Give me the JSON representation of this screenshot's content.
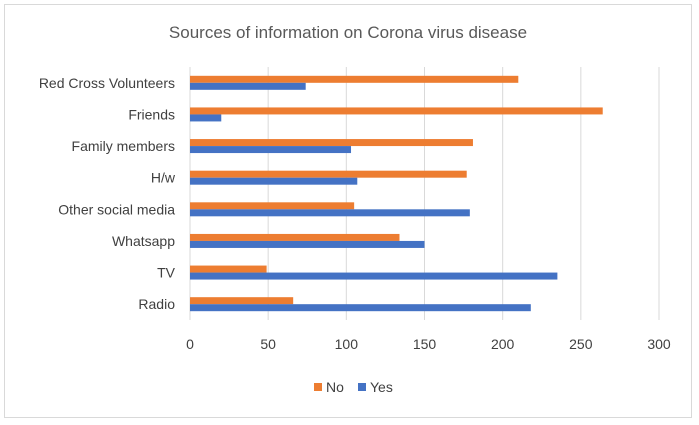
{
  "chart_data": {
    "type": "bar",
    "orientation": "horizontal",
    "title": "Sources of information on Corona virus disease",
    "categories": [
      "Red Cross Volunteers",
      "Friends",
      "Family members",
      "H/w",
      "Other social media",
      "Whatsapp",
      "TV",
      "Radio"
    ],
    "series": [
      {
        "name": "No",
        "color": "#ED7D31",
        "values": [
          210,
          264,
          181,
          177,
          105,
          134,
          49,
          66
        ]
      },
      {
        "name": "Yes",
        "color": "#4472C4",
        "values": [
          74,
          20,
          103,
          107,
          179,
          150,
          235,
          218
        ]
      }
    ],
    "xlim": [
      0,
      300
    ],
    "xticks": [
      0,
      50,
      100,
      150,
      200,
      250,
      300
    ],
    "xgrid": true,
    "legend_position": "bottom"
  }
}
